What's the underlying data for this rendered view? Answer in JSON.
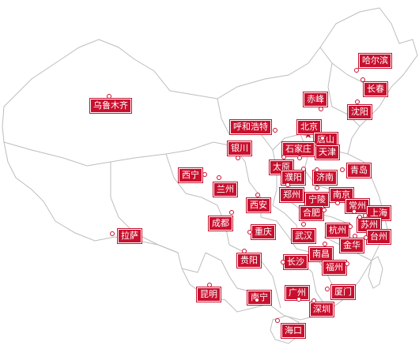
{
  "map": {
    "colors": {
      "label_bg": "#c8102e",
      "label_text": "#ffffff",
      "border": "#bdbdbd",
      "star": "#c8102e"
    },
    "capital_icon": "star-icon",
    "cities": [
      {
        "id": "haerbin",
        "name": "哈尔滨"
      },
      {
        "id": "changchun",
        "name": "长春"
      },
      {
        "id": "shenyang",
        "name": "沈阳"
      },
      {
        "id": "chifeng",
        "name": "赤峰"
      },
      {
        "id": "beijing",
        "name": "北京",
        "capital": true
      },
      {
        "id": "tangshan",
        "name": "唐山"
      },
      {
        "id": "tianjin",
        "name": "天津"
      },
      {
        "id": "shijiazhuang",
        "name": "石家庄"
      },
      {
        "id": "huhehaote",
        "name": "呼和浩特"
      },
      {
        "id": "yinchuan",
        "name": "银川"
      },
      {
        "id": "wulumuqi",
        "name": "乌鲁木齐"
      },
      {
        "id": "xining",
        "name": "西宁"
      },
      {
        "id": "lanzhou",
        "name": "兰州"
      },
      {
        "id": "taiyuan",
        "name": "太原"
      },
      {
        "id": "puyang",
        "name": "濮阳"
      },
      {
        "id": "jinan",
        "name": "济南"
      },
      {
        "id": "qingdao",
        "name": "青岛"
      },
      {
        "id": "zhengzhou",
        "name": "郑州"
      },
      {
        "id": "ningling",
        "name": "宁陵"
      },
      {
        "id": "nanjing",
        "name": "南京"
      },
      {
        "id": "xian",
        "name": "西安"
      },
      {
        "id": "hefei",
        "name": "合肥"
      },
      {
        "id": "changzhou",
        "name": "常州"
      },
      {
        "id": "shanghai",
        "name": "上海"
      },
      {
        "id": "suzhou",
        "name": "苏州"
      },
      {
        "id": "taizhou",
        "name": "台州"
      },
      {
        "id": "hangzhou",
        "name": "杭州"
      },
      {
        "id": "jinhua",
        "name": "金华"
      },
      {
        "id": "chengdu",
        "name": "成都"
      },
      {
        "id": "chongqing",
        "name": "重庆"
      },
      {
        "id": "wuhan",
        "name": "武汉"
      },
      {
        "id": "nanchang",
        "name": "南昌"
      },
      {
        "id": "lasa",
        "name": "拉萨"
      },
      {
        "id": "guiyang",
        "name": "贵阳"
      },
      {
        "id": "changsha",
        "name": "长沙"
      },
      {
        "id": "fuzhou",
        "name": "福州"
      },
      {
        "id": "kunming",
        "name": "昆明"
      },
      {
        "id": "nanning",
        "name": "南宁"
      },
      {
        "id": "guangzhou",
        "name": "广州"
      },
      {
        "id": "xiamen",
        "name": "厦门"
      },
      {
        "id": "shenzhen",
        "name": "深圳"
      },
      {
        "id": "haikou",
        "name": "海口"
      }
    ]
  }
}
